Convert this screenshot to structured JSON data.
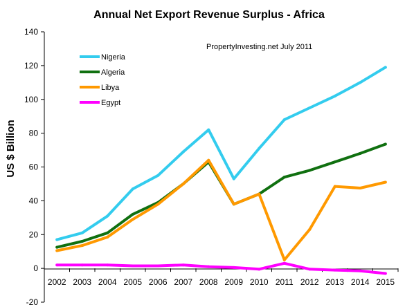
{
  "chart_data": {
    "type": "line",
    "title": "Annual Net Export Revenue Surplus - Africa",
    "annotation": "PropertyInvesting.net  July 2011",
    "xlabel": "",
    "ylabel": "US $ Billion",
    "ylim": [
      -20,
      140
    ],
    "yticks": [
      "-20",
      "0",
      "20",
      "40",
      "60",
      "80",
      "100",
      "120",
      "140"
    ],
    "categories": [
      "2002",
      "2003",
      "2004",
      "2005",
      "2006",
      "2007",
      "2008",
      "2009",
      "2010",
      "2011",
      "2012",
      "2013",
      "2014",
      "2015"
    ],
    "grid": false,
    "legend_position": "top-left",
    "series": [
      {
        "name": "Nigeria",
        "color": "#33CCEE",
        "values": [
          17,
          21,
          31,
          47,
          55,
          69,
          82,
          53,
          71,
          88,
          95,
          102,
          110,
          119
        ]
      },
      {
        "name": "Algeria",
        "color": "#107010",
        "values": [
          12.5,
          16,
          21,
          32,
          39,
          50,
          63,
          38,
          44,
          54,
          58,
          63,
          68,
          73.5
        ]
      },
      {
        "name": "Libya",
        "color": "#FF9900",
        "values": [
          10.5,
          13.5,
          18.5,
          29,
          38,
          50,
          64,
          38,
          44,
          5,
          23,
          48.5,
          47.5,
          51
        ]
      },
      {
        "name": "Egypt",
        "color": "#FF00FF",
        "values": [
          2,
          2,
          2,
          1.5,
          1.5,
          2,
          1,
          0.5,
          -0.5,
          3,
          -0.5,
          -1,
          -1.5,
          -3
        ]
      }
    ]
  }
}
